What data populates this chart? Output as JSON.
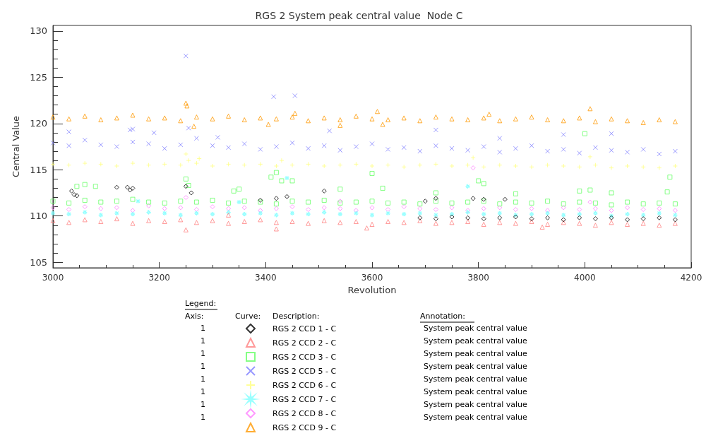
{
  "chart_data": {
    "type": "scatter",
    "title": "RGS 2 System peak central value  Node C",
    "xlabel": "Revolution",
    "ylabel": "Central Value",
    "legend_title": "Legend:",
    "legend": "bottom",
    "grid": false,
    "xlim": [
      3000,
      4200
    ],
    "xticks": [
      3000,
      3200,
      3400,
      3600,
      3800,
      4000,
      4200
    ],
    "ylim": [
      104.4,
      130.6
    ],
    "yticks": [
      105,
      110,
      115,
      120,
      125,
      130
    ],
    "annotations": [
      "Axis:",
      "Curve:",
      "Description:",
      "Annotation:",
      "1",
      "System peak central value",
      "1",
      "System peak central value",
      "1",
      "System peak central value",
      "1",
      "System peak central value",
      "1",
      "System peak central value",
      "1",
      "System peak central value",
      "1",
      "System peak central value",
      "1",
      "System peak central value"
    ],
    "series": [
      {
        "name": "RGS 2 CCD 1 - C",
        "color": "#000000",
        "marker": "diamond",
        "x": [
          3690,
          3720,
          3750,
          3780,
          3810,
          3840,
          3870,
          3900,
          3930,
          3960,
          3990,
          4020,
          4050,
          4080,
          4110,
          4140,
          4170,
          3035,
          3040,
          3045,
          3120,
          3140,
          3145,
          3150,
          3250,
          3260,
          3390,
          3420,
          3440,
          3510,
          3700,
          3720,
          3790,
          3810,
          3850
        ],
        "values": [
          109.8,
          109.7,
          109.9,
          109.8,
          109.7,
          109.8,
          109.9,
          109.7,
          109.8,
          109.6,
          109.8,
          109.7,
          109.8,
          109.6,
          109.7,
          109.8,
          109.6,
          112.7,
          112.3,
          112.2,
          113.1,
          113.1,
          112.8,
          113.0,
          113.2,
          112.5,
          111.7,
          111.9,
          112.1,
          112.7,
          111.6,
          111.9,
          111.9,
          111.8,
          111.8
        ]
      },
      {
        "name": "RGS 2 CCD 2 - C",
        "color": "#ff7f7f",
        "marker": "triangle",
        "x": [
          3000,
          3030,
          3060,
          3090,
          3120,
          3150,
          3180,
          3210,
          3240,
          3270,
          3300,
          3330,
          3360,
          3390,
          3420,
          3450,
          3480,
          3510,
          3540,
          3570,
          3600,
          3630,
          3660,
          3690,
          3720,
          3750,
          3780,
          3810,
          3840,
          3870,
          3900,
          3930,
          3960,
          3990,
          4020,
          4050,
          4080,
          4110,
          4140,
          4170,
          3250,
          3420,
          3590,
          3920,
          3330
        ],
        "values": [
          109.5,
          109.3,
          109.6,
          109.4,
          109.7,
          109.2,
          109.5,
          109.4,
          109.6,
          109.3,
          109.5,
          109.2,
          109.4,
          109.6,
          109.3,
          109.4,
          109.2,
          109.5,
          109.3,
          109.4,
          109.1,
          109.4,
          109.3,
          109.5,
          109.2,
          109.3,
          109.4,
          109.1,
          109.3,
          109.2,
          109.4,
          109.1,
          109.3,
          109.2,
          109.0,
          109.3,
          109.1,
          109.2,
          109.0,
          109.2,
          108.5,
          108.6,
          108.7,
          108.8,
          110.1
        ]
      },
      {
        "name": "RGS 2 CCD 3 - C",
        "color": "#66ff66",
        "marker": "square",
        "x": [
          3000,
          3030,
          3060,
          3090,
          3120,
          3150,
          3180,
          3210,
          3240,
          3270,
          3300,
          3330,
          3360,
          3390,
          3420,
          3450,
          3480,
          3510,
          3540,
          3570,
          3600,
          3630,
          3660,
          3690,
          3720,
          3750,
          3780,
          3810,
          3840,
          3870,
          3900,
          3930,
          3960,
          3990,
          4020,
          4050,
          4080,
          4110,
          4140,
          4170,
          3045,
          3060,
          3080,
          3250,
          3255,
          3340,
          3350,
          3410,
          3420,
          3430,
          3450,
          3540,
          3600,
          3620,
          3720,
          3800,
          3810,
          4000,
          4010,
          4160,
          3990,
          3870,
          4050,
          4155
        ],
        "values": [
          111.6,
          111.4,
          111.7,
          111.5,
          111.6,
          111.8,
          111.5,
          111.4,
          111.6,
          111.5,
          111.7,
          111.4,
          111.6,
          111.5,
          111.3,
          111.6,
          111.5,
          111.7,
          111.4,
          111.5,
          111.6,
          111.4,
          111.5,
          111.3,
          111.6,
          111.4,
          111.5,
          111.6,
          111.3,
          111.5,
          111.4,
          111.6,
          111.3,
          111.5,
          111.4,
          111.2,
          111.5,
          111.3,
          111.4,
          111.3,
          113.2,
          113.4,
          113.2,
          114.0,
          113.3,
          112.7,
          112.9,
          114.2,
          114.7,
          113.8,
          113.8,
          112.9,
          114.6,
          113.0,
          112.5,
          113.8,
          113.5,
          118.9,
          112.8,
          114.2,
          112.7,
          112.4,
          112.5,
          112.6
        ]
      },
      {
        "name": "RGS 2 CCD 5 - C",
        "color": "#7f7fff",
        "marker": "cross",
        "x": [
          3000,
          3030,
          3060,
          3090,
          3120,
          3150,
          3180,
          3210,
          3240,
          3270,
          3300,
          3330,
          3360,
          3390,
          3420,
          3450,
          3480,
          3510,
          3540,
          3570,
          3600,
          3630,
          3660,
          3690,
          3720,
          3750,
          3780,
          3810,
          3840,
          3870,
          3900,
          3930,
          3960,
          3990,
          4020,
          4050,
          4080,
          4110,
          4140,
          4170,
          3250,
          3415,
          3455,
          3030,
          3145,
          3150,
          3255,
          3190,
          3520,
          3720,
          3960,
          4050,
          3310,
          3840
        ],
        "values": [
          117.9,
          117.6,
          118.2,
          117.7,
          117.5,
          118.0,
          117.8,
          117.3,
          117.7,
          118.4,
          117.6,
          117.4,
          117.8,
          117.2,
          117.5,
          117.9,
          117.3,
          117.6,
          117.1,
          117.5,
          117.8,
          117.2,
          117.4,
          117.0,
          117.6,
          117.3,
          117.1,
          117.5,
          116.9,
          117.3,
          117.6,
          117.0,
          117.2,
          116.8,
          117.4,
          117.1,
          116.9,
          117.2,
          116.7,
          117.0,
          127.3,
          122.9,
          123.0,
          119.1,
          119.3,
          119.4,
          119.5,
          119.0,
          119.2,
          119.3,
          118.8,
          118.9,
          118.5,
          118.4
        ]
      },
      {
        "name": "RGS 2 CCD 6 - C",
        "color": "#ffff7f",
        "marker": "plus",
        "x": [
          3000,
          3030,
          3060,
          3090,
          3120,
          3150,
          3180,
          3210,
          3240,
          3270,
          3300,
          3330,
          3360,
          3390,
          3420,
          3450,
          3480,
          3510,
          3540,
          3570,
          3600,
          3630,
          3660,
          3690,
          3720,
          3750,
          3780,
          3810,
          3840,
          3870,
          3900,
          3930,
          3960,
          3990,
          4020,
          4050,
          4080,
          4110,
          4140,
          4170,
          3250,
          3255,
          3430,
          3790,
          4010,
          3275
        ],
        "values": [
          115.6,
          115.5,
          115.7,
          115.6,
          115.4,
          115.7,
          115.5,
          115.6,
          115.5,
          115.7,
          115.4,
          115.6,
          115.5,
          115.6,
          115.4,
          115.5,
          115.6,
          115.4,
          115.5,
          115.6,
          115.4,
          115.5,
          115.3,
          115.5,
          115.6,
          115.4,
          115.5,
          115.3,
          115.5,
          115.4,
          115.3,
          115.5,
          115.4,
          115.3,
          115.5,
          115.2,
          115.4,
          115.3,
          115.2,
          115.4,
          116.7,
          116.0,
          116.0,
          116.3,
          116.4,
          116.2
        ]
      },
      {
        "name": "RGS 2 CCD 7 - C",
        "color": "#7fffff",
        "marker": "star",
        "x": [
          3000,
          3030,
          3060,
          3090,
          3120,
          3150,
          3180,
          3210,
          3240,
          3270,
          3300,
          3330,
          3360,
          3390,
          3420,
          3450,
          3480,
          3510,
          3540,
          3570,
          3600,
          3630,
          3660,
          3690,
          3720,
          3750,
          3780,
          3810,
          3840,
          3870,
          3900,
          3930,
          3960,
          3990,
          4020,
          4050,
          4080,
          4110,
          4140,
          4170,
          3440,
          3780,
          3160,
          3350
        ],
        "values": [
          110.3,
          110.2,
          110.4,
          110.1,
          110.3,
          110.2,
          110.4,
          110.3,
          110.1,
          110.3,
          110.2,
          110.4,
          110.2,
          110.3,
          110.1,
          110.3,
          110.2,
          110.4,
          110.2,
          110.3,
          110.1,
          110.3,
          110.2,
          110.3,
          110.1,
          110.2,
          110.4,
          110.2,
          110.3,
          110.1,
          110.2,
          110.3,
          110.1,
          110.2,
          110.3,
          110.0,
          110.2,
          110.1,
          110.3,
          110.1,
          114.1,
          113.2,
          111.6,
          111.5
        ]
      },
      {
        "name": "RGS 2 CCD 8 - C",
        "color": "#ff7fff",
        "marker": "diamond",
        "x": [
          3000,
          3030,
          3060,
          3090,
          3120,
          3150,
          3180,
          3210,
          3240,
          3270,
          3300,
          3330,
          3360,
          3390,
          3420,
          3450,
          3480,
          3510,
          3540,
          3570,
          3600,
          3630,
          3660,
          3690,
          3720,
          3750,
          3780,
          3810,
          3840,
          3870,
          3900,
          3930,
          3960,
          3990,
          4020,
          4050,
          4080,
          4110,
          4140,
          4170,
          3790,
          3250,
          3540,
          4010
        ],
        "values": [
          110.9,
          110.7,
          111.0,
          110.8,
          110.9,
          110.6,
          111.1,
          110.8,
          110.9,
          110.7,
          111.0,
          110.8,
          110.9,
          110.6,
          110.8,
          111.0,
          110.7,
          110.9,
          110.8,
          110.6,
          110.9,
          110.7,
          111.0,
          110.8,
          110.7,
          110.9,
          110.6,
          110.8,
          110.9,
          110.7,
          110.8,
          110.6,
          110.9,
          110.7,
          110.8,
          110.6,
          110.9,
          110.7,
          110.8,
          110.6,
          115.2,
          112.0,
          111.6,
          111.5
        ]
      },
      {
        "name": "RGS 2 CCD 9 - C",
        "color": "#ff9900",
        "marker": "triangle",
        "x": [
          3000,
          3030,
          3060,
          3090,
          3120,
          3150,
          3180,
          3210,
          3240,
          3270,
          3300,
          3330,
          3360,
          3390,
          3420,
          3450,
          3480,
          3510,
          3540,
          3570,
          3600,
          3630,
          3660,
          3690,
          3720,
          3750,
          3780,
          3810,
          3840,
          3870,
          3900,
          3930,
          3960,
          3990,
          4020,
          4050,
          4080,
          4110,
          4140,
          4170,
          3250,
          3252,
          3265,
          3405,
          3455,
          3610,
          3620,
          3820,
          4010,
          3540
        ],
        "values": [
          120.7,
          120.5,
          120.8,
          120.4,
          120.6,
          120.9,
          120.5,
          120.6,
          120.3,
          120.7,
          120.5,
          120.8,
          120.4,
          120.6,
          120.5,
          120.7,
          120.3,
          120.6,
          120.4,
          120.8,
          120.5,
          120.4,
          120.6,
          120.3,
          120.7,
          120.5,
          120.4,
          120.6,
          120.3,
          120.5,
          120.7,
          120.4,
          120.3,
          120.6,
          120.2,
          120.5,
          120.3,
          120.1,
          120.4,
          120.2,
          122.2,
          121.9,
          119.7,
          119.9,
          121.1,
          121.3,
          119.9,
          121.0,
          121.6,
          119.8
        ]
      }
    ]
  }
}
